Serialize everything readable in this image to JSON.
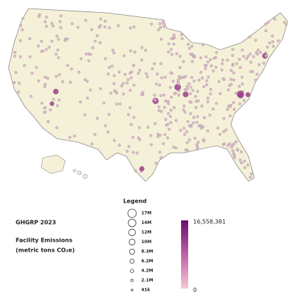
{
  "legend": {
    "title": "Legend",
    "dataset": "GHGRP 2023",
    "measure": "Facility Emissions",
    "units": "(metric tons CO₂e)",
    "size_labels": [
      "17M",
      "14M",
      "12M",
      "10M",
      "8.3M",
      "6.2M",
      "4.2M",
      "2.1M",
      "41k"
    ],
    "color_max": "16,558,381",
    "color_min": "0"
  }
}
